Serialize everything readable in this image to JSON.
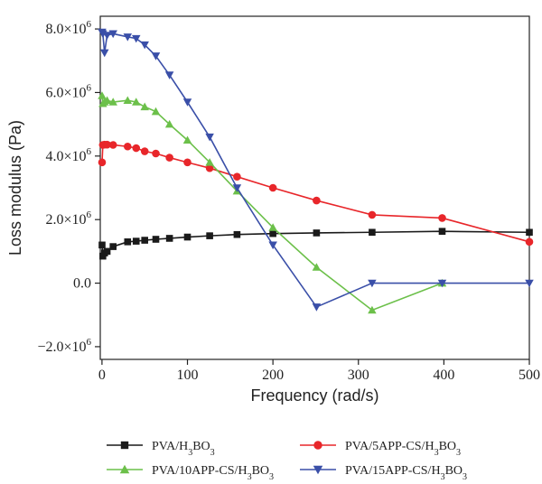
{
  "chart_data": {
    "type": "line",
    "xlabel": "Frequency (rad/s)",
    "ylabel": "Loss modulus (Pa)",
    "xlim": [
      -2,
      500
    ],
    "ylim": [
      -2400000,
      8400000
    ],
    "xticks": [
      {
        "value": 0,
        "label": "0"
      },
      {
        "value": 100,
        "label": "100"
      },
      {
        "value": 200,
        "label": "200"
      },
      {
        "value": 300,
        "label": "300"
      },
      {
        "value": 400,
        "label": "400"
      },
      {
        "value": 500,
        "label": "500"
      }
    ],
    "yticks": [
      {
        "value": -2000000,
        "mant": "−2.0×10",
        "exp": "6"
      },
      {
        "value": 0,
        "mant": "0.0",
        "exp": ""
      },
      {
        "value": 2000000,
        "mant": "2.0×10",
        "exp": "6"
      },
      {
        "value": 4000000,
        "mant": "4.0×10",
        "exp": "6"
      },
      {
        "value": 6000000,
        "mant": "6.0×10",
        "exp": "6"
      },
      {
        "value": 8000000,
        "mant": "8.0×10",
        "exp": "6"
      }
    ],
    "legend_position": "bottom",
    "series": [
      {
        "name": "PVA/H3BO3",
        "legend": {
          "pre": "PVA/H",
          "sub": "3",
          "mid": "BO",
          "sub2": "3"
        },
        "color": "#1a1a1a",
        "marker": "square",
        "x": [
          0.1,
          1,
          3,
          6,
          13,
          30,
          40,
          50,
          63,
          79,
          100,
          126,
          158,
          200,
          251,
          316,
          398,
          500
        ],
        "y": [
          1200000,
          850000,
          950000,
          1000000,
          1150000,
          1300000,
          1320000,
          1350000,
          1380000,
          1410000,
          1450000,
          1490000,
          1530000,
          1560000,
          1580000,
          1600000,
          1630000,
          1600000
        ]
      },
      {
        "name": "PVA/5APP-CS/H3BO3",
        "legend": {
          "pre": "PVA/5APP-CS/H",
          "sub": "3",
          "mid": "BO",
          "sub2": "3"
        },
        "color": "#e8262a",
        "marker": "circle",
        "x": [
          0.1,
          1,
          3,
          6,
          13,
          30,
          40,
          50,
          63,
          79,
          100,
          126,
          158,
          200,
          251,
          316,
          398,
          500
        ],
        "y": [
          3800000,
          4350000,
          4360000,
          4360000,
          4350000,
          4300000,
          4250000,
          4150000,
          4080000,
          3950000,
          3800000,
          3620000,
          3350000,
          3000000,
          2600000,
          2150000,
          2050000,
          1300000
        ]
      },
      {
        "name": "PVA/10APP-CS/H3BO3",
        "legend": {
          "pre": "PVA/10APP-CS/H",
          "sub": "3",
          "mid": "BO",
          "sub2": "3"
        },
        "color": "#6cc04a",
        "marker": "triangle-up",
        "x": [
          0.1,
          1,
          3,
          6,
          13,
          30,
          40,
          50,
          63,
          79,
          100,
          126,
          158,
          200,
          251,
          316,
          398
        ],
        "y": [
          5900000,
          5650000,
          5700000,
          5750000,
          5700000,
          5750000,
          5700000,
          5550000,
          5400000,
          5000000,
          4500000,
          3800000,
          2900000,
          1750000,
          500000,
          -850000,
          0
        ]
      },
      {
        "name": "PVA/15APP-CS/H3BO3",
        "legend": {
          "pre": "PVA/15APP-CS/H",
          "sub": "3",
          "mid": "BO",
          "sub2": "3"
        },
        "color": "#3a4fa8",
        "marker": "triangle-down",
        "x": [
          0.1,
          1,
          3,
          6,
          13,
          30,
          40,
          50,
          63,
          79,
          100,
          126,
          158,
          200,
          251,
          316,
          398,
          500
        ],
        "y": [
          7900000,
          7850000,
          7250000,
          7800000,
          7850000,
          7750000,
          7700000,
          7500000,
          7150000,
          6550000,
          5700000,
          4600000,
          3000000,
          1200000,
          -750000,
          0,
          0,
          0
        ]
      }
    ]
  }
}
